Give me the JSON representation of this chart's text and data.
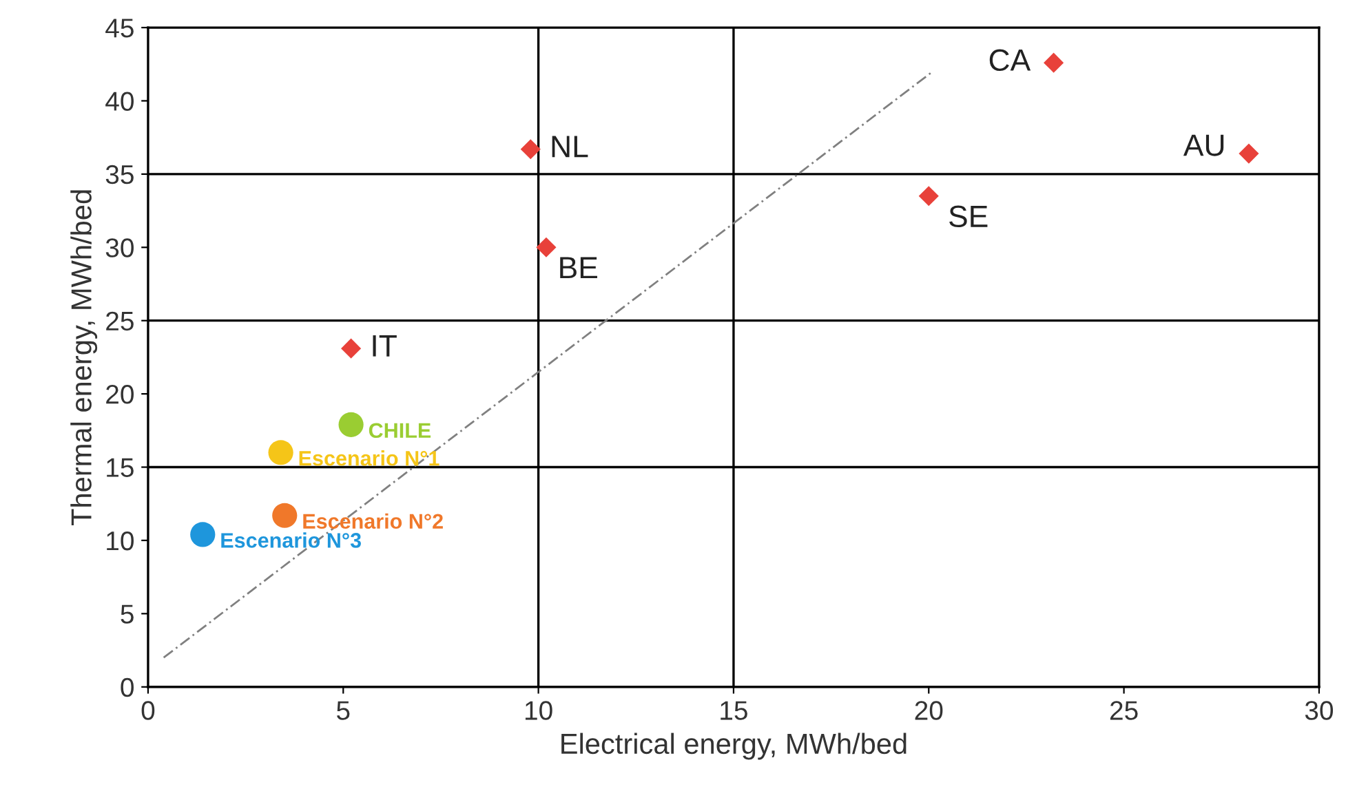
{
  "chart_data": {
    "type": "scatter",
    "xlabel": "Electrical energy, MWh/bed",
    "ylabel": "Thermal energy, MWh/bed",
    "xlim": [
      0,
      30
    ],
    "ylim": [
      0,
      45
    ],
    "xticks": [
      0,
      5,
      10,
      15,
      20,
      25,
      30
    ],
    "yticks": [
      0,
      5,
      10,
      15,
      20,
      25,
      30,
      35,
      40,
      45
    ],
    "ref_lines": [
      {
        "axis": "x",
        "value": 10,
        "color": "#000000"
      },
      {
        "axis": "x",
        "value": 15,
        "color": "#000000"
      },
      {
        "axis": "y",
        "value": 15,
        "color": "#000000"
      },
      {
        "axis": "y",
        "value": 25,
        "color": "#000000"
      },
      {
        "axis": "y",
        "value": 35,
        "color": "#000000"
      }
    ],
    "series": [
      {
        "type": "line",
        "color": "#808080",
        "line_style": "dashed",
        "marker": "none",
        "x": [
          0.4,
          20.1
        ],
        "values": [
          2.0,
          42.0
        ]
      },
      {
        "color": "#e8413a",
        "marker": "diamond",
        "x": [
          9.8,
          10.2,
          5.2,
          20.0,
          23.2,
          28.2
        ],
        "values": [
          36.7,
          30.0,
          23.1,
          33.5,
          42.6,
          36.4
        ]
      },
      {
        "name": "CHILE",
        "color": "#9acd32",
        "marker": "circle",
        "x": [
          5.2
        ],
        "values": [
          17.9
        ]
      },
      {
        "name": "Escenario N°1",
        "color": "#f5c518",
        "marker": "circle",
        "x": [
          3.4
        ],
        "values": [
          16.0
        ]
      },
      {
        "name": "Escenario N°2",
        "color": "#f0782a",
        "marker": "circle",
        "x": [
          3.5
        ],
        "values": [
          11.7
        ]
      },
      {
        "name": "Escenario N°3",
        "color": "#1e96dc",
        "marker": "circle",
        "x": [
          1.4
        ],
        "values": [
          10.4
        ]
      }
    ],
    "annotations": [
      {
        "text": "NL",
        "x": 9.8,
        "y": 36.7
      },
      {
        "text": "BE",
        "x": 10.2,
        "y": 30.0
      },
      {
        "text": "IT",
        "x": 5.2,
        "y": 23.1
      },
      {
        "text": "SE",
        "x": 20.0,
        "y": 33.5
      },
      {
        "text": "CA",
        "x": 23.2,
        "y": 42.6
      },
      {
        "text": "AU",
        "x": 28.2,
        "y": 36.4
      }
    ],
    "grid": false,
    "legend": false
  }
}
